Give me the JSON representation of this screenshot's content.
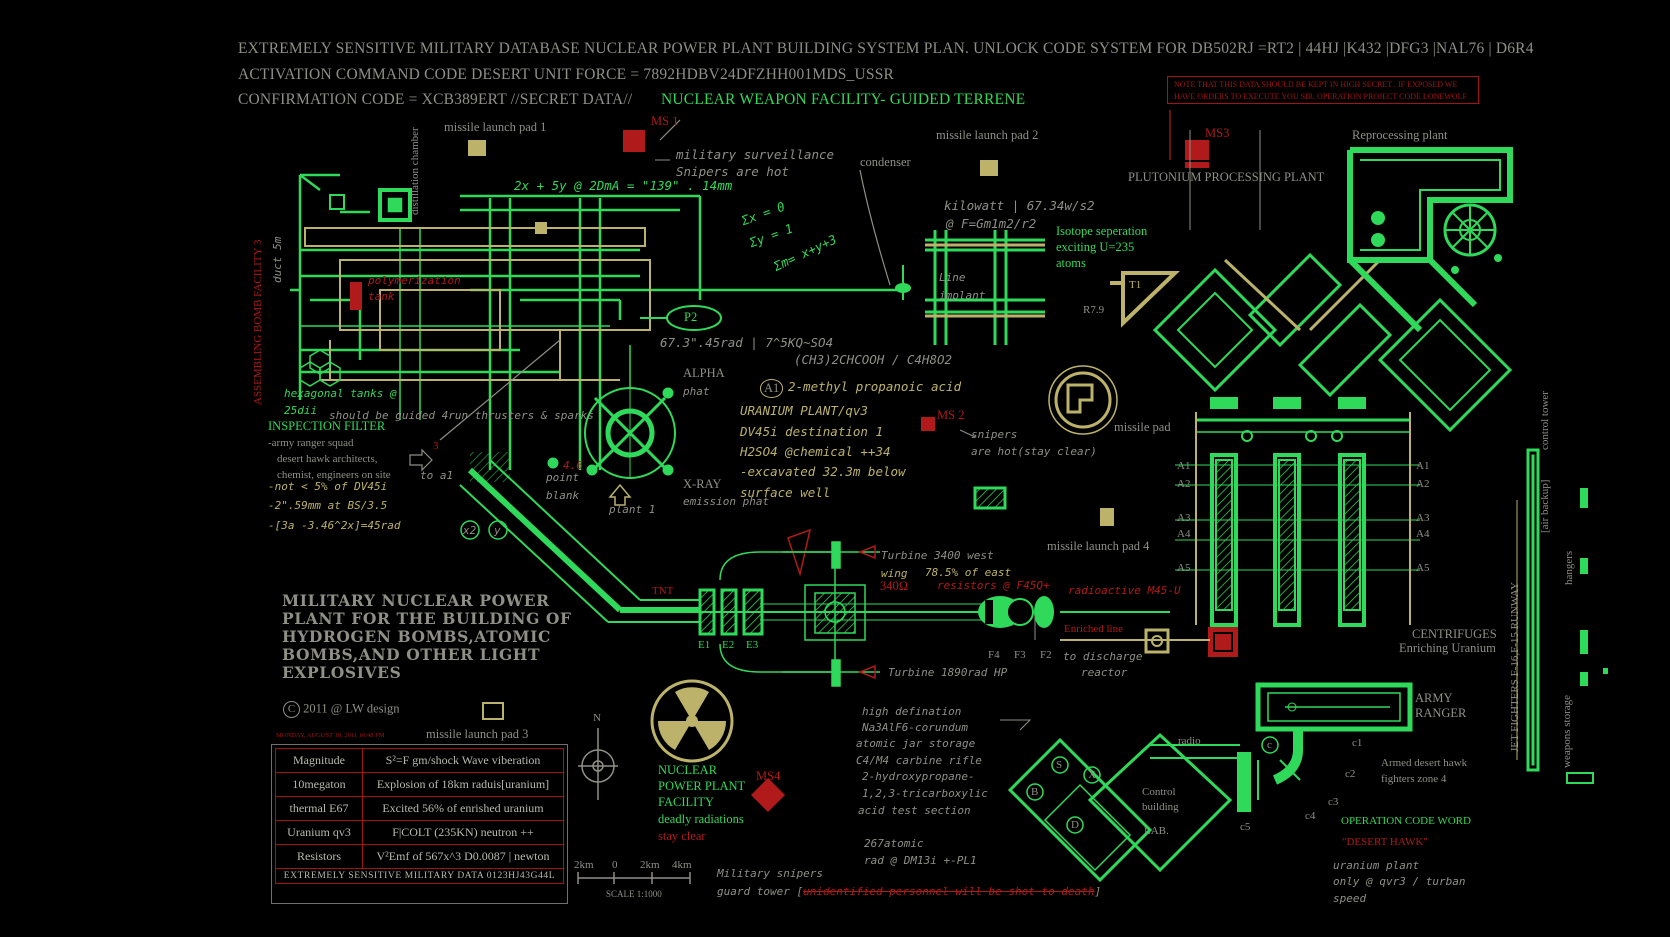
{
  "header": {
    "line1": "EXTREMELY SENSITIVE MILITARY DATABASE NUCLEAR POWER PLANT BUILDING SYSTEM PLAN. UNLOCK CODE SYSTEM FOR  DB502RJ =RT2 | 44HJ |K432 |DFG3 |NAL76 | D6R4",
    "line2": "ACTIVATION  COMMAND  CODE DESERT UNIT FORCE = 7892HDBV24DFZHH001MDS_USSR",
    "line3_a": "CONFIRMATION  CODE = XCB389ERT  //SECRET    DATA//",
    "line3_b": "NUCLEAR WEAPON FACILITY- GUIDED TERRENE"
  },
  "note": {
    "line1": "NOTE THAT THIS DATA SHOULD BE KEPT IN HIGH SECRET . IF EXPOSED WE",
    "line2": "HAVE ORDERS TO EXECUTE YOU SIR. OPERATION PROJECT CODE LONEWOLF"
  },
  "labels": {
    "missile_pad_1": "missile launch pad 1",
    "missile_pad_2": "missile launch pad 2",
    "missile_pad_3": "missile launch pad 3",
    "missile_pad_4": "missile launch pad 4",
    "missile_pad": "missile pad",
    "ms1": "MS 1",
    "ms2": "MS 2",
    "ms3": "MS3",
    "ms4": "MS4",
    "mil_surv_1": "military surveillance",
    "mil_surv_2": "Snipers are hot",
    "formula_top": "2x + 5y @ 2DmA = \"139\" . 14mm",
    "condenser": "condenser",
    "kilowatt_1": "kilowatt | 67.34w/s2",
    "kilowatt_2": "@ F=Gm1m2/r2",
    "isotope_1": "Isotope seperation",
    "isotope_2": "exciting U=235",
    "isotope_3": "atoms",
    "plutonium": "PLUTONIUM PROCESSING PLANT",
    "reprocessing": "Reprocessing plant",
    "distillation": "distillation chamber",
    "assembling": "ASSEMBLING BOMB FACILITY 3",
    "duct": "duct 5m",
    "polymer_1": "polymerization",
    "polymer_2": "tank",
    "eq_1": "Σx = 0",
    "eq_2": "Σy = 1",
    "eq_3": "Σm= x+y+3",
    "p2": "P2",
    "line_implant_1": "Line",
    "line_implant_2": "implant",
    "t1": "T1",
    "r79": "R7.9",
    "rad_1": "67.3\".45rad | 7^5KQ~SO4",
    "rad_2": "(CH3)2CHCOOH / C4H8O2",
    "a1": "A1",
    "methyl": "2-methyl propanoic acid",
    "alpha_1": "ALPHA",
    "alpha_2": "phat",
    "uranium_1": "URANIUM PLANT/qv3",
    "uranium_2": "DV45i destination 1",
    "uranium_3": "H2SO4 @chemical ++34",
    "uranium_4": "-excavated 32.3m below",
    "uranium_5": "surface well",
    "xray_1": "X-RAY",
    "xray_2": "emission phat",
    "plant1": "plant 1",
    "hex_1": "hexagonal tanks @",
    "hex_2": "25dii",
    "guided": "should be guided 4run thrusters & sparks",
    "inspection": "INSPECTION FILTER",
    "army_1": "-army ranger squad",
    "army_2": "desert hawk architects,",
    "army_3": "chemist, engineers on site",
    "not5": "-not < 5% of DV45i",
    "mm59": "-2\".59mm at BS/3.5",
    "eq45": "-[3a -3.46^2x]=45rad",
    "three": "3",
    "to_a1": "to a1",
    "n46": "4.6",
    "point_blank_1": "point",
    "point_blank_2": "blank",
    "x2": "x2",
    "y": "y",
    "snipers_1": "snipers",
    "snipers_2": "are hot(stay clear)",
    "turbine_west": "Turbine 3400 west",
    "wing": "wing",
    "east": "78.5% of east",
    "omega": "340Ω",
    "resistors": "resistors @ F45Q+",
    "radioactive": "radioactive M45-U",
    "tnt": "TNT",
    "e1": "E1",
    "e2": "E2",
    "e3": "E3",
    "enriched": "Enriched line",
    "f4": "F4",
    "f3": "F3",
    "f2": "F2",
    "discharge_1": "to discharge",
    "discharge_2": "reactor",
    "turbine_hp": "Turbine 1890rad HP",
    "centrifuges_1": "CENTRIFUGES",
    "centrifuges_2": "Enriching Uranium",
    "army_ranger_1": "ARMY",
    "army_ranger_2": "RANGER",
    "armed_1": "Armed desert hawk",
    "armed_2": "fighters zone 4",
    "control_tower": "control tower",
    "air_backup": "[air backup]",
    "hangers": "hangers",
    "runway": "JET FIGHTERS  F-16,F-15 RUNWAY",
    "weapons_storage": "weapons storage",
    "op_code": "OPERATION CODE WORD",
    "desert_hawk": "\"DESERT HAWK\"",
    "uranium_plant_1": "uranium plant",
    "uranium_plant_2": "only @ qvr3 / turban",
    "uranium_plant_3": "speed",
    "title_big": "MILITARY NUCLEAR POWER PLANT FOR THE BUILDING OF HYDROGEN BOMBS,ATOMIC BOMBS,AND OTHER LIGHT EXPLOSIVES",
    "copyright": "2011 @ LW design",
    "date_line": "MONDAY, AUGUST 18, 2011    10:48 PM",
    "nuclear_1": "NUCLEAR",
    "nuclear_2": "POWER PLANT",
    "nuclear_3": "FACILITY",
    "nuclear_4": "deadly radiations",
    "nuclear_5": "stay clear",
    "north": "N",
    "scale_2km": "2km",
    "scale_0": "0",
    "scale_2km_b": "2km",
    "scale_4km": "4km",
    "scale": "SCALE 1:1000",
    "guard_1": "Military snipers",
    "guard_2": "guard tower [",
    "guard_3": "unidentified personnel will be shot to death",
    "guard_4": "]",
    "highdef_1": "high defination",
    "highdef_2": "Na3AlF6-corundum",
    "highdef_3": "atomic jar storage",
    "highdef_4": "C4/M4 carbine rifle",
    "highdef_5": "2-hydroxypropane-",
    "highdef_6": "1,2,3-tricarboxylic",
    "highdef_7": "acid test section",
    "atomic_1": "267atomic",
    "atomic_2": "rad @ DM13i +-PL1",
    "control_1": "Control",
    "control_2": "building",
    "lab": "LAB.",
    "radio": "radio",
    "c1": "c1",
    "c2": "c2",
    "c3": "c3",
    "c4": "c4",
    "c5": "c5",
    "c": "c",
    "sA": "S",
    "sX": "X",
    "sB": "B",
    "sD": "D",
    "A1l": "A1",
    "A2l": "A2",
    "A3l": "A3",
    "A4l": "A4",
    "A5l": "A5",
    "A1r": "A1",
    "A2r": "A2",
    "A3r": "A3",
    "A4r": "A4",
    "A5r": "A5"
  },
  "spec_table": {
    "rows": [
      [
        "Magnitude",
        "S²=F gm/shock Wave viberation"
      ],
      [
        "10megaton",
        "Explosion of 18km raduis[uranium]"
      ],
      [
        "thermal E67",
        "Excited 56% of enrished uranium"
      ],
      [
        "Uranium qv3",
        "F|COLT (235KN) neutron ++"
      ],
      [
        "Resistors",
        "V²Emf of 567x^3 D0.0087 | newton"
      ]
    ],
    "footer": "EXTREMELY SENSITIVE MILITARY DATA  0123HJ43G44L"
  },
  "colors": {
    "background": "#000000",
    "green": "#2fd95a",
    "olive": "#bcb26a",
    "red": "#b01a1a",
    "grey": "#8f8f86"
  }
}
